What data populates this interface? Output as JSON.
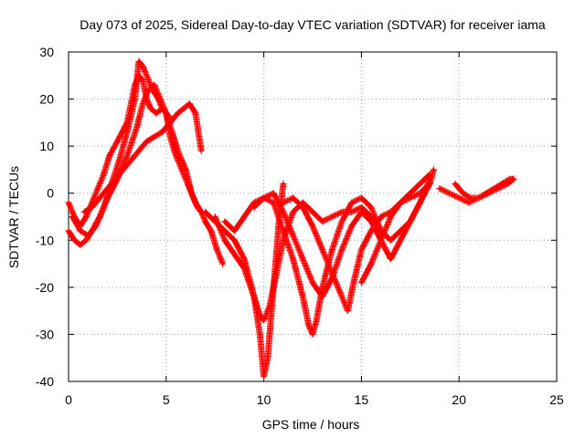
{
  "chart_data": {
    "type": "scatter",
    "title": "Day 073 of 2025, Sidereal Day-to-day VTEC variation (SDTVAR) for receiver iama",
    "xlabel": "GPS time / hours",
    "ylabel": "SDTVAR / TECUs",
    "xlim": [
      0,
      25
    ],
    "ylim": [
      -40,
      30
    ],
    "xticks": [
      "0",
      "5",
      "10",
      "15",
      "20",
      "25"
    ],
    "yticks": [
      "-40",
      "-30",
      "-20",
      "-10",
      "0",
      "10",
      "20",
      "30"
    ],
    "grid": true,
    "marker": "plus",
    "color": "#ff0000",
    "series": [
      {
        "x": [
          0.0,
          0.3,
          0.6,
          0.9,
          1.2,
          1.5,
          1.8,
          2.1,
          2.5,
          3.0,
          3.4,
          3.6,
          3.8,
          4.0,
          4.2,
          4.5,
          4.8,
          5.0,
          5.2
        ],
        "y": [
          -2,
          -5,
          -7,
          -5,
          -2,
          1,
          4,
          8,
          11,
          15,
          23,
          25,
          24,
          20,
          18,
          17,
          18,
          17,
          16
        ]
      },
      {
        "x": [
          0.0,
          0.3,
          0.6,
          0.9,
          1.2,
          1.6,
          2.0,
          2.5,
          3.0,
          3.5,
          3.8,
          4.1,
          4.4,
          4.7,
          5.0,
          5.3,
          5.6,
          6.0,
          6.3,
          6.6,
          6.8
        ],
        "y": [
          -8,
          -10,
          -11,
          -10,
          -8,
          -5,
          -1,
          3,
          8,
          14,
          19,
          22,
          23,
          20,
          17,
          13,
          9,
          5,
          0,
          -3,
          -4
        ]
      },
      {
        "x": [
          0.2,
          0.6,
          1.0,
          1.4,
          1.8,
          2.2,
          2.6,
          3.0,
          3.4,
          3.6,
          3.8,
          4.0,
          4.3,
          4.6,
          4.8,
          5.0,
          5.2,
          5.5,
          5.8,
          6.2,
          6.5,
          6.8,
          7.0,
          7.3,
          7.6,
          7.9
        ],
        "y": [
          -5,
          -8,
          -9,
          -7,
          -3,
          2,
          7,
          13,
          20,
          28,
          27,
          25,
          22,
          20,
          18,
          17,
          12,
          8,
          5,
          1,
          -2,
          -4,
          -6,
          -8,
          -12,
          -15
        ]
      },
      {
        "x": [
          0.8,
          1.2,
          1.6,
          2.0,
          2.4,
          2.8,
          3.2,
          3.6,
          4.0,
          4.4,
          4.8,
          5.2,
          5.6,
          5.9,
          6.2,
          6.5,
          6.8
        ],
        "y": [
          -4,
          -3,
          -1,
          1,
          3,
          5,
          7,
          9,
          11,
          12,
          13,
          15,
          17,
          18,
          19,
          17,
          9
        ]
      },
      {
        "x": [
          7.0,
          7.5,
          8.0,
          8.5,
          9.0,
          9.5,
          9.8,
          10.0,
          10.2,
          10.5,
          10.8,
          11.0
        ],
        "y": [
          -4,
          -6,
          -8,
          -10,
          -14,
          -22,
          -30,
          -39,
          -35,
          -20,
          -5,
          2
        ]
      },
      {
        "x": [
          7.5,
          8.0,
          8.5,
          9.0,
          9.5,
          9.8,
          10.0,
          10.3,
          10.6,
          11.0,
          11.5,
          12.0,
          12.5,
          13.0,
          13.5,
          14.0,
          14.5,
          15.0,
          15.5,
          16.0
        ],
        "y": [
          -5,
          -10,
          -13,
          -16,
          -22,
          -26,
          -27,
          -24,
          -18,
          -10,
          -4,
          -2,
          -4,
          -6,
          -5,
          -4,
          -4,
          -3,
          -5,
          -8
        ]
      },
      {
        "x": [
          8.0,
          8.5,
          9.0,
          9.5,
          10.0,
          10.5,
          11.0,
          11.5,
          12.0,
          12.3,
          12.5,
          12.7,
          13.0,
          13.5,
          14.0,
          14.5,
          15.0,
          15.5,
          16.0,
          16.5,
          17.0,
          17.5,
          18.0,
          18.5
        ],
        "y": [
          -6,
          -8,
          -5,
          -2,
          -1,
          -2,
          -8,
          -14,
          -22,
          -28,
          -30,
          -27,
          -20,
          -12,
          -6,
          -2,
          -1,
          -3,
          -8,
          -10,
          -8,
          -6,
          -2,
          2
        ]
      },
      {
        "x": [
          9.5,
          10.0,
          10.5,
          11.0,
          11.5,
          12.0,
          12.5,
          13.0,
          13.5,
          14.0,
          14.5,
          15.0,
          15.5,
          16.0,
          16.5,
          17.0,
          17.5,
          18.0,
          18.5
        ],
        "y": [
          -3,
          -1,
          0,
          -4,
          -9,
          -14,
          -19,
          -22,
          -18,
          -12,
          -7,
          -4,
          -6,
          -10,
          -14,
          -10,
          -6,
          -2,
          3
        ]
      },
      {
        "x": [
          11.0,
          11.5,
          12.0,
          12.5,
          13.0,
          13.5,
          14.0,
          14.3,
          14.6,
          15.0,
          15.5,
          16.0,
          16.5,
          17.0,
          17.5,
          18.0,
          18.5
        ],
        "y": [
          -2,
          -1,
          -3,
          -7,
          -12,
          -17,
          -22,
          -25,
          -19,
          -12,
          -8,
          -5,
          -4,
          -2,
          0,
          2,
          4
        ]
      },
      {
        "x": [
          15.0,
          15.5,
          16.0,
          16.5,
          17.0,
          17.5,
          18.0,
          18.5,
          18.7
        ],
        "y": [
          -19,
          -15,
          -10,
          -5,
          -2,
          -1,
          0,
          2,
          5
        ]
      },
      {
        "x": [
          19.0,
          19.5,
          20.0,
          20.5,
          21.0,
          21.5,
          22.0,
          22.5,
          22.8
        ],
        "y": [
          1,
          0,
          -1,
          -2,
          -1,
          0,
          1,
          2,
          3
        ]
      },
      {
        "x": [
          19.8,
          20.2,
          20.6,
          21.0,
          21.4,
          21.8,
          22.2,
          22.6,
          22.8
        ],
        "y": [
          2,
          0,
          -1,
          -1,
          0,
          1,
          2,
          3,
          3
        ]
      }
    ]
  }
}
